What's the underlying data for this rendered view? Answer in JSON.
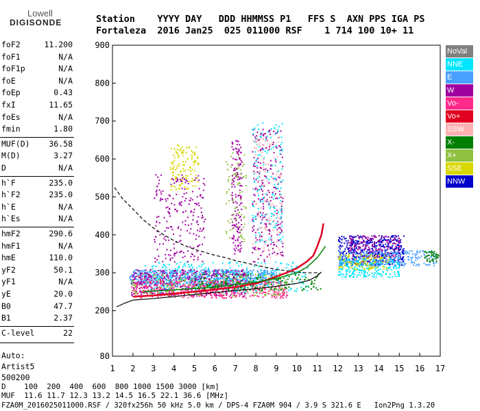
{
  "logo": {
    "line1": "Lowell",
    "line2": "DIGISONDE"
  },
  "header": {
    "labels": "Station    YYYY DAY   DDD HHMMSS P1   FFS S  AXN PPS IGA PS",
    "values": "Fortaleza  2016 Jan25  025 011000 RSF    1 714 100 10+ 11"
  },
  "parameters": [
    {
      "key": "foF2",
      "value": "11.200"
    },
    {
      "key": "foF1",
      "value": "N/A"
    },
    {
      "key": "foF1p",
      "value": "N/A"
    },
    {
      "key": "foE",
      "value": "N/A"
    },
    {
      "key": "foEp",
      "value": "0.43"
    },
    {
      "key": "fxI",
      "value": "11.65"
    },
    {
      "key": "foEs",
      "value": "N/A"
    },
    {
      "key": "fmin",
      "value": "1.80"
    },
    {
      "key": "MUF(D)",
      "value": "36.58"
    },
    {
      "key": "M(D)",
      "value": "3.27"
    },
    {
      "key": "D",
      "value": "N/A"
    },
    {
      "key": "h`F",
      "value": "235.0"
    },
    {
      "key": "h`F2",
      "value": "235.0"
    },
    {
      "key": "h`E",
      "value": "N/A"
    },
    {
      "key": "h`Es",
      "value": "N/A"
    },
    {
      "key": "hmF2",
      "value": "290.6"
    },
    {
      "key": "hmF1",
      "value": "N/A"
    },
    {
      "key": "hmE",
      "value": "110.0"
    },
    {
      "key": "yF2",
      "value": "50.1"
    },
    {
      "key": "yF1",
      "value": "N/A"
    },
    {
      "key": "yE",
      "value": "20.0"
    },
    {
      "key": "B0",
      "value": "47.7"
    },
    {
      "key": "B1",
      "value": "2.37"
    },
    {
      "key": "C-level",
      "value": "22"
    }
  ],
  "autoscaling": {
    "line1": "Auto:",
    "line2": "Artist5",
    "line3": "500200"
  },
  "legend": [
    {
      "label": "NoVal",
      "color": "#808080"
    },
    {
      "label": "NNE",
      "color": "#00e5ff"
    },
    {
      "label": "E",
      "color": "#4aa0ff"
    },
    {
      "label": "W",
      "color": "#a000a0"
    },
    {
      "label": "Vo-",
      "color": "#ff2a8a"
    },
    {
      "label": "Vo+",
      "color": "#e00020"
    },
    {
      "label": "SSW",
      "color": "#ffb0b0"
    },
    {
      "label": "X-",
      "color": "#008000"
    },
    {
      "label": "X+",
      "color": "#90c040"
    },
    {
      "label": "SSE",
      "color": "#d8d800"
    },
    {
      "label": "NNW",
      "color": "#0000cc"
    }
  ],
  "footer": {
    "distances": "D    100  200  400  600  800 1000 1500 3000 [km]",
    "muf": "MUF  11.6 11.7 12.3 13.2 14.5 16.5 22.1 36.6 [MHz]",
    "file": "FZA0M_2016025011000.RSF / 320fx256h 50 kHz 5.0 km / DPS-4 FZA0M 904 / 3.9 S 321.6 E   Ion2Png 1.3.20"
  },
  "chart_data": {
    "type": "scatter",
    "xlim": [
      1,
      17
    ],
    "ylim": [
      80,
      900
    ],
    "x_ticks": [
      1,
      2,
      3,
      4,
      5,
      6,
      7,
      8,
      9,
      10,
      11,
      12,
      13,
      14,
      15,
      16,
      17
    ],
    "y_ticks": [
      80,
      200,
      300,
      400,
      500,
      600,
      700,
      800,
      900
    ],
    "grid": false,
    "legend_position": "right",
    "clusters": [
      {
        "series": "E",
        "x": [
          1.8,
          9.0
        ],
        "y": [
          270,
          310
        ],
        "n": 700
      },
      {
        "series": "W",
        "x": [
          1.9,
          7.5
        ],
        "y": [
          240,
          310
        ],
        "n": 500
      },
      {
        "series": "Vo-",
        "x": [
          1.9,
          9.5
        ],
        "y": [
          235,
          280
        ],
        "n": 450
      },
      {
        "series": "NNE",
        "x": [
          2.5,
          10.5
        ],
        "y": [
          250,
          330
        ],
        "n": 300
      },
      {
        "series": "X+",
        "x": [
          1.9,
          9.5
        ],
        "y": [
          240,
          300
        ],
        "n": 200
      },
      {
        "series": "SSE",
        "x": [
          3.8,
          5.2
        ],
        "y": [
          520,
          640
        ],
        "n": 120
      },
      {
        "series": "W",
        "x": [
          3.0,
          5.5
        ],
        "y": [
          330,
          560
        ],
        "n": 220
      },
      {
        "series": "W",
        "x": [
          6.8,
          7.3
        ],
        "y": [
          350,
          650
        ],
        "n": 150
      },
      {
        "series": "W",
        "x": [
          7.8,
          9.3
        ],
        "y": [
          330,
          680
        ],
        "n": 250
      },
      {
        "series": "NNE",
        "x": [
          7.8,
          9.3
        ],
        "y": [
          380,
          700
        ],
        "n": 160
      },
      {
        "series": "SSW",
        "x": [
          7.8,
          9.3
        ],
        "y": [
          340,
          660
        ],
        "n": 120
      },
      {
        "series": "X+",
        "x": [
          6.5,
          7.5
        ],
        "y": [
          380,
          620
        ],
        "n": 80
      },
      {
        "series": "X-",
        "x": [
          5.0,
          11.3
        ],
        "y": [
          255,
          300
        ],
        "n": 160
      },
      {
        "series": "NNW",
        "x": [
          12.0,
          15.2
        ],
        "y": [
          320,
          400
        ],
        "n": 450
      },
      {
        "series": "W",
        "x": [
          12.5,
          15.0
        ],
        "y": [
          330,
          400
        ],
        "n": 200
      },
      {
        "series": "NNE",
        "x": [
          12.0,
          15.0
        ],
        "y": [
          290,
          340
        ],
        "n": 250
      },
      {
        "series": "E",
        "x": [
          12.0,
          16.8
        ],
        "y": [
          320,
          360
        ],
        "n": 250
      },
      {
        "series": "SSE",
        "x": [
          12.0,
          14.5
        ],
        "y": [
          310,
          350
        ],
        "n": 100
      },
      {
        "series": "X-",
        "x": [
          16.2,
          16.9
        ],
        "y": [
          330,
          360
        ],
        "n": 40
      }
    ],
    "traces": [
      {
        "name": "virtual-height-trace",
        "style": "dashed",
        "x": [
          1.1,
          1.5,
          2.0,
          2.5,
          3.0,
          3.5,
          4.0,
          4.5,
          5.0,
          5.5,
          6.0,
          6.5,
          7.0,
          7.5,
          8.0,
          8.5,
          9.0,
          9.5,
          10.0,
          10.5,
          11.0
        ],
        "y": [
          525,
          495,
          468,
          440,
          418,
          400,
          385,
          372,
          362,
          354,
          346,
          340,
          332,
          326,
          320,
          314,
          309,
          305,
          301,
          300,
          300
        ]
      },
      {
        "name": "true-height-profile",
        "style": "solid",
        "x": [
          1.2,
          1.6,
          2.0,
          3.0,
          4.0,
          5.0,
          6.0,
          7.0,
          8.0,
          9.0,
          10.0,
          10.6,
          11.0,
          11.2
        ],
        "y": [
          210,
          220,
          228,
          232,
          237,
          243,
          248,
          253,
          258,
          264,
          272,
          280,
          292,
          302
        ]
      },
      {
        "name": "red-trace",
        "style": "solid",
        "x": [
          2.0,
          3.0,
          4.0,
          5.0,
          6.0,
          7.0,
          8.0,
          8.5,
          9.0,
          9.5,
          10.0,
          10.5,
          10.8,
          11.0,
          11.2,
          11.3
        ],
        "y": [
          237,
          240,
          245,
          250,
          256,
          262,
          272,
          280,
          290,
          300,
          312,
          330,
          345,
          370,
          400,
          430
        ]
      },
      {
        "name": "extraordinary-trace",
        "style": "solid",
        "x": [
          2.5,
          4.0,
          6.0,
          8.0,
          9.0,
          10.0,
          10.5,
          11.0,
          11.4
        ],
        "y": [
          250,
          255,
          262,
          275,
          285,
          300,
          315,
          340,
          370
        ]
      }
    ]
  }
}
